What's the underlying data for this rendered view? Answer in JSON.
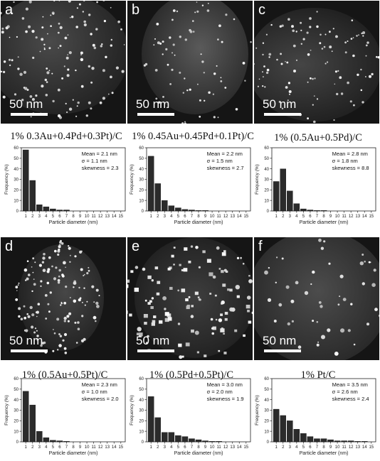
{
  "figure": {
    "scale_label": "50 nm",
    "panels": [
      {
        "letter": "a",
        "composition": "1% 0.3Au+0.4Pd+0.3Pt)/C",
        "mean": "Mean = 2.1 nm",
        "sigma": "σ = 1.1 nm",
        "skewness": "skewness = 2.3"
      },
      {
        "letter": "b",
        "composition": "1% 0.45Au+0.45Pd+0.1Pt)/C",
        "mean": "Mean = 2.2 nm",
        "sigma": "σ = 1.5 nm",
        "skewness": "skewness = 2.7"
      },
      {
        "letter": "c",
        "composition": "1% (0.5Au+0.5Pd)/C",
        "mean": "Mean = 2.8 nm",
        "sigma": "σ = 1.8 nm",
        "skewness": "skewness = 8.8"
      },
      {
        "letter": "d",
        "composition": "1% (0.5Au+0.5Pt)/C",
        "mean": "Mean = 2.3 nm",
        "sigma": "σ = 1.0 nm",
        "skewness": "skewness = 2.0"
      },
      {
        "letter": "e",
        "composition": "1% (0.5Pd+0.5Pt)/C",
        "mean": "Mean = 3.0 nm",
        "sigma": "σ = 2.0 nm",
        "skewness": "skewness = 1.9"
      },
      {
        "letter": "f",
        "composition": "1% Pt/C",
        "mean": "Mean = 3.5 nm",
        "sigma": "σ = 2.6 nm",
        "skewness": "skewness = 2.4"
      }
    ]
  },
  "chart_data": [
    {
      "type": "bar",
      "x": [
        1,
        2,
        3,
        4,
        5,
        6,
        7,
        8,
        9,
        10,
        11,
        12,
        13,
        14,
        15
      ],
      "values": [
        58,
        29,
        6,
        4,
        2,
        1,
        1,
        0,
        0,
        0,
        0,
        0,
        0,
        0,
        0
      ],
      "xlabel": "Particle diameter (nm)",
      "ylabel": "Frequency (%)",
      "xticks": [
        "1",
        "2",
        "3",
        "4",
        "5",
        "6",
        "7",
        "8",
        "9",
        "10",
        "11",
        "12",
        "13",
        "14",
        "15"
      ],
      "ylim": [
        0,
        60
      ],
      "yticks": [
        "0",
        "10",
        "20",
        "30",
        "40",
        "50",
        "60"
      ]
    },
    {
      "type": "bar",
      "x": [
        1,
        2,
        3,
        4,
        5,
        6,
        7,
        8,
        9,
        10,
        11,
        12,
        13,
        14,
        15
      ],
      "values": [
        52,
        26,
        10,
        5,
        3,
        1.5,
        1,
        0.5,
        0.5,
        0,
        0,
        0,
        0,
        0,
        0
      ],
      "xlabel": "Particle diameter (nm)",
      "ylabel": "Frequency (%)",
      "xticks": [
        "1",
        "2",
        "3",
        "4",
        "5",
        "6",
        "7",
        "8",
        "9",
        "10",
        "11",
        "12",
        "13",
        "14",
        "15"
      ],
      "ylim": [
        0,
        60
      ],
      "yticks": [
        "0",
        "10",
        "20",
        "30",
        "40",
        "50",
        "60"
      ]
    },
    {
      "type": "bar",
      "x": [
        1,
        2,
        3,
        4,
        5,
        6,
        7,
        8,
        9,
        10,
        11,
        12,
        13,
        14,
        15
      ],
      "values": [
        28,
        40,
        19,
        7,
        2,
        1,
        0.5,
        0.5,
        0,
        0,
        0,
        0,
        0,
        0,
        0
      ],
      "xlabel": "Particle diameter (nm)",
      "ylabel": "Frequency (%)",
      "xticks": [
        "1",
        "2",
        "3",
        "4",
        "5",
        "6",
        "7",
        "8",
        "9",
        "10",
        "11",
        "12",
        "13",
        "14",
        "15"
      ],
      "ylim": [
        0,
        60
      ],
      "yticks": [
        "0",
        "10",
        "20",
        "30",
        "40",
        "50",
        "60"
      ]
    },
    {
      "type": "bar",
      "x": [
        1,
        2,
        3,
        4,
        5,
        6,
        7,
        8,
        9,
        10,
        11,
        12,
        13,
        14,
        15
      ],
      "values": [
        48,
        35,
        10,
        4,
        1.5,
        1,
        0.5,
        0,
        0,
        0,
        0,
        0,
        0,
        0,
        0
      ],
      "xlabel": "Particle diameter (nm)",
      "ylabel": "Frequency (%)",
      "xticks": [
        "1",
        "2",
        "3",
        "4",
        "5",
        "6",
        "7",
        "8",
        "9",
        "10",
        "11",
        "12",
        "13",
        "14",
        "15"
      ],
      "ylim": [
        0,
        60
      ],
      "yticks": [
        "0",
        "10",
        "20",
        "30",
        "40",
        "50",
        "60"
      ]
    },
    {
      "type": "bar",
      "x": [
        1,
        2,
        3,
        4,
        5,
        6,
        7,
        8,
        9,
        10,
        11,
        12,
        13,
        14,
        15
      ],
      "values": [
        43,
        23,
        9,
        9,
        6,
        5,
        3,
        2,
        1,
        0.5,
        0.5,
        0,
        0,
        0,
        0
      ],
      "xlabel": "Particle diameter (nm)",
      "ylabel": "Frequency (%)",
      "xticks": [
        "1",
        "2",
        "3",
        "4",
        "5",
        "6",
        "7",
        "8",
        "9",
        "10",
        "11",
        "12",
        "13",
        "14",
        "15"
      ],
      "ylim": [
        0,
        60
      ],
      "yticks": [
        "0",
        "10",
        "20",
        "30",
        "40",
        "50",
        "60"
      ]
    },
    {
      "type": "bar",
      "x": [
        1,
        2,
        3,
        4,
        5,
        6,
        7,
        8,
        9,
        10,
        11,
        12,
        13,
        14,
        15
      ],
      "values": [
        31,
        25,
        20,
        12,
        8,
        5,
        3,
        3,
        2,
        1,
        1,
        1,
        0.5,
        0.5,
        0
      ],
      "xlabel": "Particle diameter (nm)",
      "ylabel": "Frequency (%)",
      "xticks": [
        "1",
        "2",
        "3",
        "4",
        "5",
        "6",
        "7",
        "8",
        "9",
        "10",
        "11",
        "12",
        "13",
        "14",
        "15"
      ],
      "ylim": [
        0,
        60
      ],
      "yticks": [
        "0",
        "10",
        "20",
        "30",
        "40",
        "50",
        "60"
      ]
    }
  ]
}
